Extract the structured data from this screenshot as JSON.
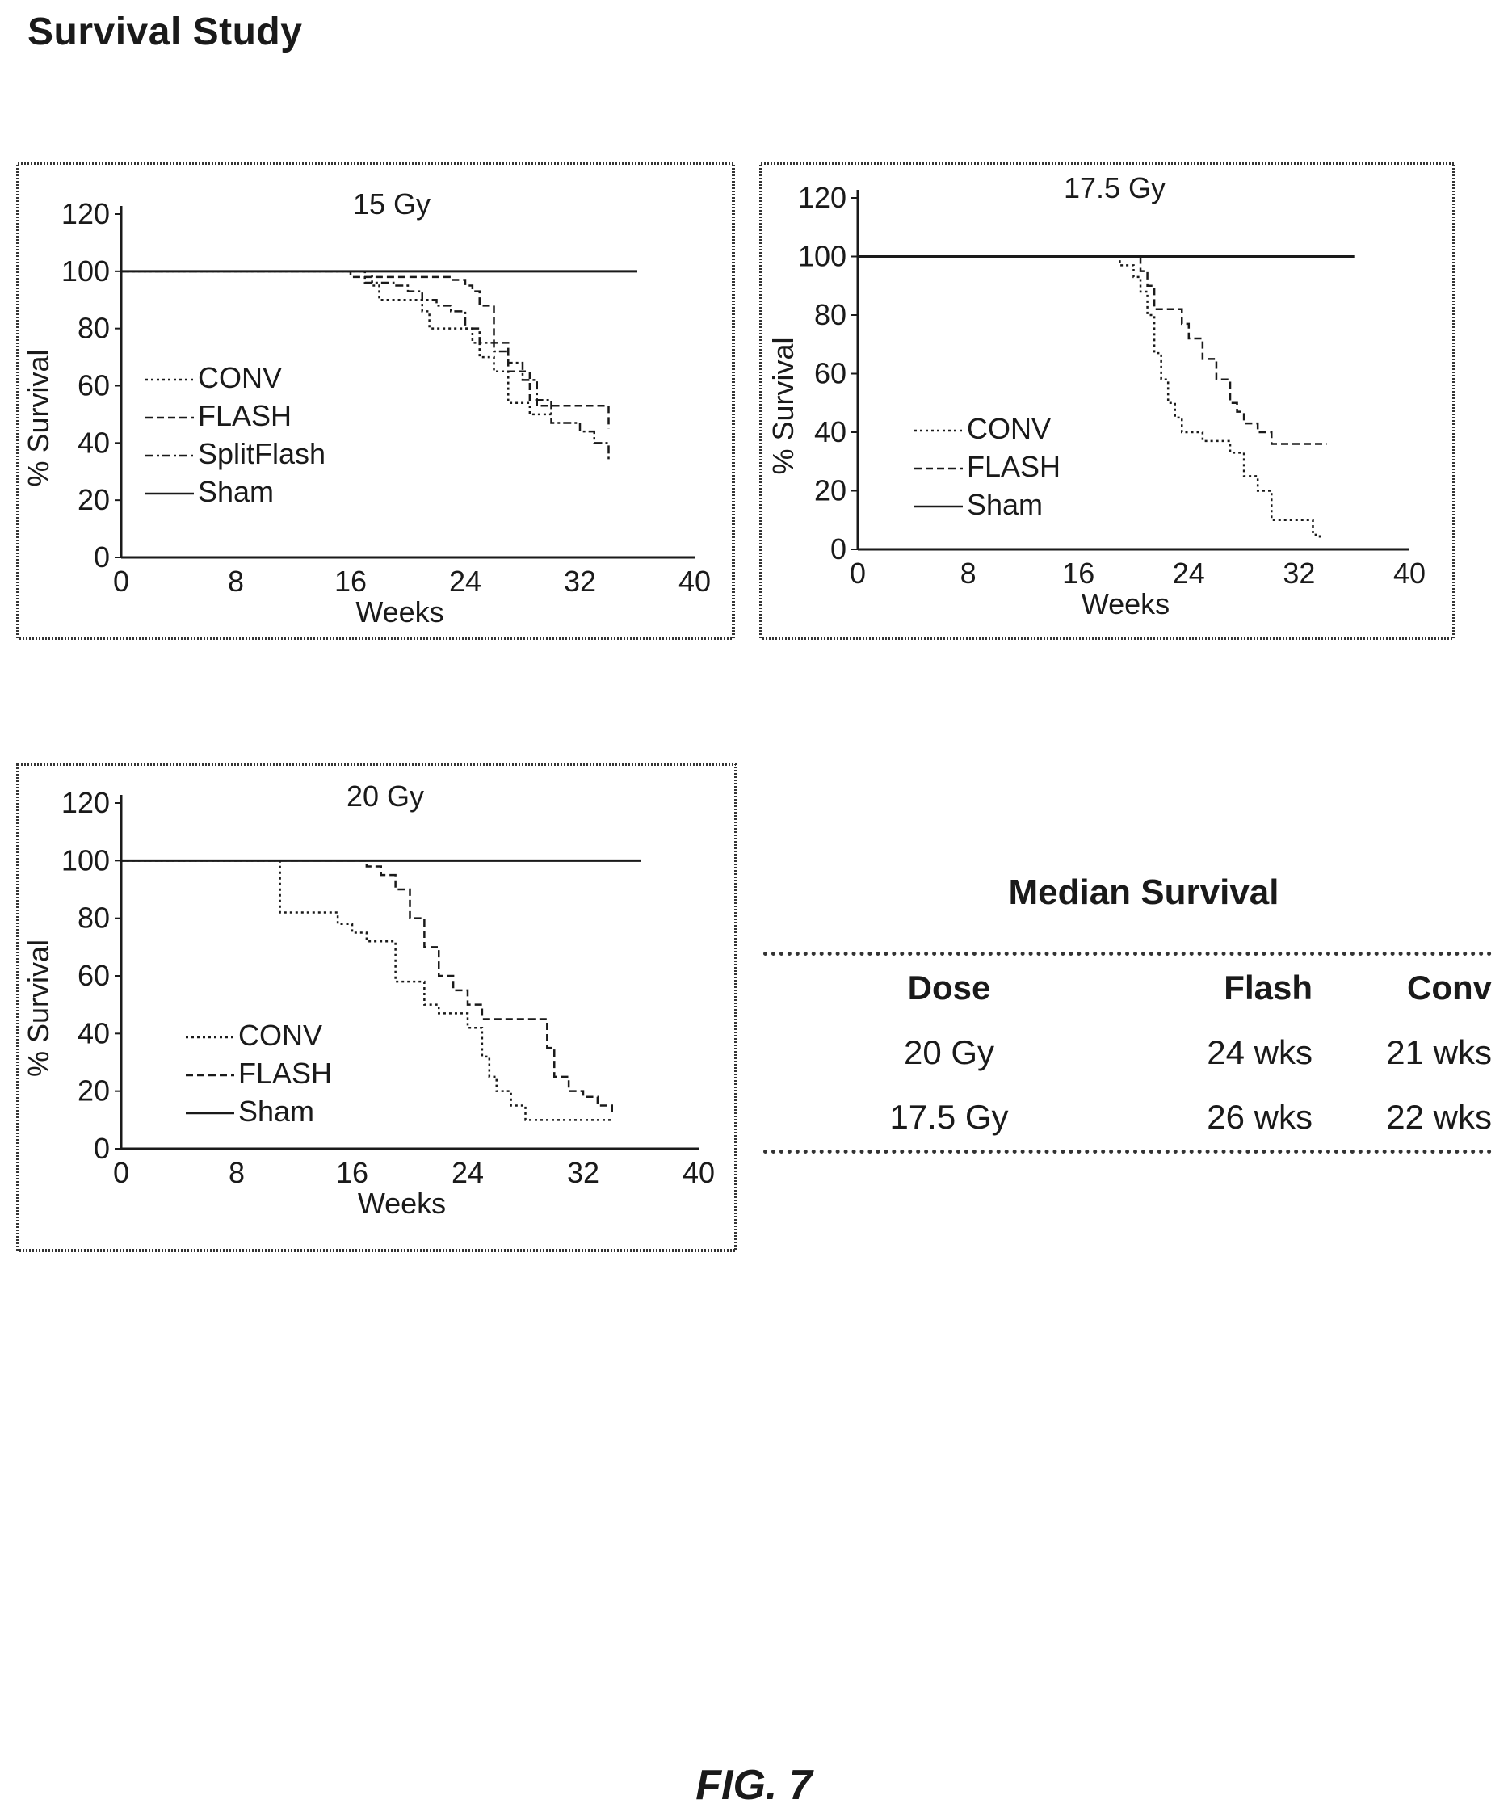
{
  "page": {
    "title": "Survival Study",
    "figure_label": "FIG. 7"
  },
  "colors": {
    "ink": "#1a1a1a",
    "frame": "#333333",
    "background": "#ffffff"
  },
  "chart_data": [
    {
      "type": "line",
      "step": true,
      "title": "15 Gy",
      "xlabel": "Weeks",
      "ylabel": "% Survival",
      "xlim": [
        0,
        40
      ],
      "ylim": [
        0,
        120
      ],
      "xticks": [
        0,
        8,
        16,
        24,
        32,
        40
      ],
      "yticks": [
        0,
        20,
        40,
        60,
        80,
        100,
        120
      ],
      "grid": false,
      "legend_position": "left",
      "series": [
        {
          "name": "CONV",
          "dash": "dotted",
          "x": [
            0,
            17,
            17.5,
            18,
            21,
            21.5,
            24,
            24.5,
            25,
            26,
            27,
            28,
            28.5,
            29,
            30
          ],
          "y": [
            100,
            100,
            95,
            90,
            86,
            80,
            80,
            75,
            70,
            65,
            54,
            54,
            50,
            50,
            50
          ]
        },
        {
          "name": "FLASH",
          "dash": "dashed",
          "x": [
            0,
            16,
            23,
            24,
            24.5,
            25,
            26,
            27,
            28.5,
            29,
            34,
            34
          ],
          "y": [
            100,
            98,
            97,
            95,
            93,
            88,
            75,
            65,
            55,
            53,
            53,
            45
          ]
        },
        {
          "name": "SplitFlash",
          "dash": "dashdot",
          "x": [
            0,
            17,
            19,
            20,
            21,
            22,
            23,
            24,
            25,
            26,
            27,
            28,
            29,
            30,
            32,
            33,
            34
          ],
          "y": [
            100,
            96,
            95,
            93,
            90,
            88,
            86,
            80,
            75,
            72,
            68,
            62,
            55,
            47,
            44,
            40,
            34
          ]
        },
        {
          "name": "Sham",
          "dash": "solid",
          "x": [
            0,
            36
          ],
          "y": [
            100,
            100
          ]
        }
      ]
    },
    {
      "type": "line",
      "step": true,
      "title": "17.5 Gy",
      "xlabel": "Weeks",
      "ylabel": "% Survival",
      "xlim": [
        0,
        40
      ],
      "ylim": [
        0,
        120
      ],
      "xticks": [
        0,
        8,
        16,
        24,
        32,
        40
      ],
      "yticks": [
        0,
        20,
        40,
        60,
        80,
        100,
        120
      ],
      "grid": false,
      "legend_position": "left",
      "series": [
        {
          "name": "CONV",
          "dash": "dotted",
          "x": [
            0,
            18,
            19,
            20,
            20.5,
            21,
            21.5,
            22,
            22.5,
            23,
            23.5,
            24,
            25,
            27,
            28,
            29,
            30,
            33,
            33.5
          ],
          "y": [
            100,
            100,
            97,
            93,
            88,
            80,
            67,
            58,
            50,
            45,
            40,
            40,
            37,
            33,
            25,
            20,
            10,
            5,
            3
          ]
        },
        {
          "name": "FLASH",
          "dash": "dashed",
          "x": [
            0,
            20,
            20.5,
            21,
            21.5,
            23,
            23.5,
            24,
            25,
            26,
            27,
            27.5,
            28,
            29,
            30,
            34
          ],
          "y": [
            100,
            100,
            95,
            90,
            82,
            82,
            77,
            72,
            65,
            58,
            50,
            47,
            43,
            40,
            36,
            36
          ]
        },
        {
          "name": "Sham",
          "dash": "solid",
          "x": [
            0,
            36
          ],
          "y": [
            100,
            100
          ]
        }
      ]
    },
    {
      "type": "line",
      "step": true,
      "title": "20 Gy",
      "xlabel": "Weeks",
      "ylabel": "% Survival",
      "xlim": [
        0,
        40
      ],
      "ylim": [
        0,
        120
      ],
      "xticks": [
        0,
        8,
        16,
        24,
        32,
        40
      ],
      "yticks": [
        0,
        20,
        40,
        60,
        80,
        100,
        120
      ],
      "grid": false,
      "legend_position": "left",
      "series": [
        {
          "name": "CONV",
          "dash": "dotted",
          "x": [
            0,
            11,
            11,
            15,
            16,
            17,
            19,
            19,
            21,
            22,
            24,
            25,
            25.5,
            26,
            27,
            28,
            34
          ],
          "y": [
            100,
            100,
            82,
            78,
            75,
            72,
            72,
            58,
            50,
            47,
            42,
            32,
            25,
            20,
            15,
            10,
            10
          ]
        },
        {
          "name": "FLASH",
          "dash": "dashed",
          "x": [
            0,
            17,
            18,
            19,
            20,
            21,
            22,
            23,
            24,
            25,
            29,
            29.5,
            30,
            31,
            32,
            33,
            34
          ],
          "y": [
            100,
            98,
            95,
            90,
            80,
            70,
            60,
            55,
            50,
            45,
            45,
            35,
            25,
            20,
            18,
            15,
            12
          ]
        },
        {
          "name": "Sham",
          "dash": "solid",
          "x": [
            0,
            36
          ],
          "y": [
            100,
            100
          ]
        }
      ]
    }
  ],
  "median_survival": {
    "title": "Median Survival",
    "headers": {
      "dose": "Dose",
      "flash": "Flash",
      "conv": "Conv"
    },
    "rows": [
      {
        "dose": "20 Gy",
        "flash": "24 wks",
        "conv": "21 wks"
      },
      {
        "dose": "17.5 Gy",
        "flash": "26 wks",
        "conv": "22 wks"
      }
    ]
  }
}
